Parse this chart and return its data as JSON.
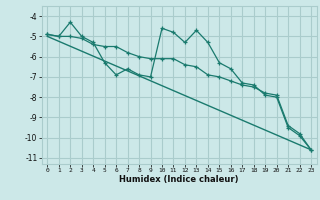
{
  "xlabel": "Humidex (Indice chaleur)",
  "bg_color": "#cce8e8",
  "grid_color": "#aacccc",
  "line_color": "#1a7a6e",
  "xlim": [
    -0.5,
    23.5
  ],
  "ylim": [
    -11.3,
    -3.5
  ],
  "yticks": [
    -11,
    -10,
    -9,
    -8,
    -7,
    -6,
    -5,
    -4
  ],
  "xticks": [
    0,
    1,
    2,
    3,
    4,
    5,
    6,
    7,
    8,
    9,
    10,
    11,
    12,
    13,
    14,
    15,
    16,
    17,
    18,
    19,
    20,
    21,
    22,
    23
  ],
  "line1_x": [
    0,
    1,
    2,
    3,
    4,
    5,
    6,
    7,
    8,
    9,
    10,
    11,
    12,
    13,
    14,
    15,
    16,
    17,
    18,
    19,
    20,
    21,
    22,
    23
  ],
  "line1_y": [
    -4.9,
    -5.0,
    -4.3,
    -5.0,
    -5.3,
    -6.3,
    -6.9,
    -6.6,
    -6.9,
    -7.0,
    -4.6,
    -4.8,
    -5.3,
    -4.7,
    -5.3,
    -6.3,
    -6.6,
    -7.3,
    -7.4,
    -7.9,
    -8.0,
    -9.5,
    -9.9,
    -10.6
  ],
  "line2_x": [
    0,
    1,
    2,
    3,
    4,
    5,
    6,
    7,
    8,
    9,
    10,
    11,
    12,
    13,
    14,
    15,
    16,
    17,
    18,
    19,
    20,
    21,
    22,
    23
  ],
  "line2_y": [
    -4.9,
    -5.0,
    -5.0,
    -5.1,
    -5.4,
    -5.5,
    -5.5,
    -5.8,
    -6.0,
    -6.1,
    -6.1,
    -6.1,
    -6.4,
    -6.5,
    -6.9,
    -7.0,
    -7.2,
    -7.4,
    -7.5,
    -7.8,
    -7.9,
    -9.4,
    -9.8,
    -10.6
  ],
  "trend_x": [
    0,
    23
  ],
  "trend_y": [
    -5.0,
    -10.6
  ]
}
